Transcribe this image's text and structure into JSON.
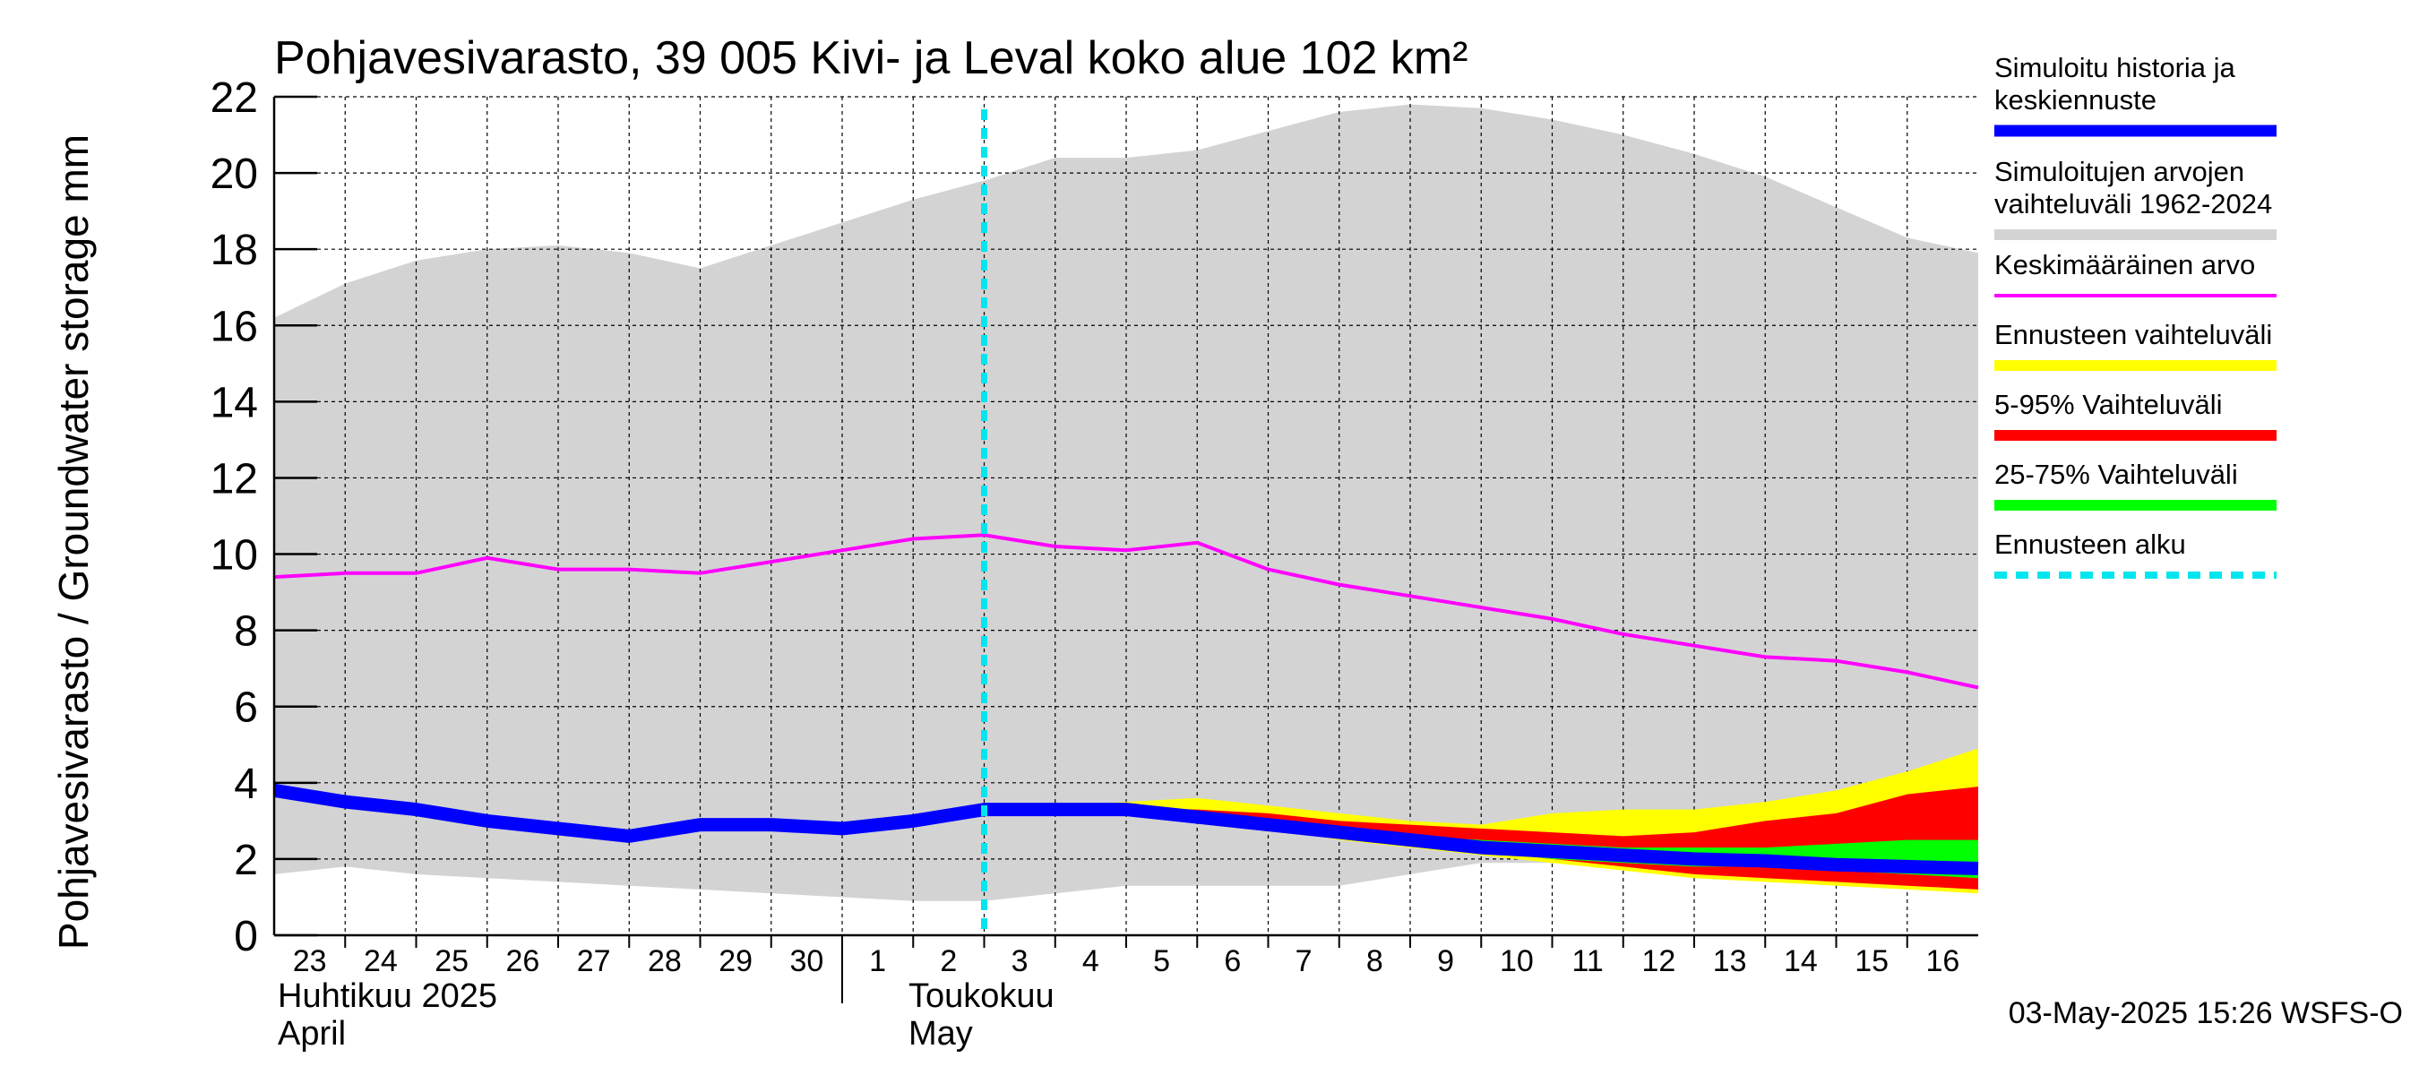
{
  "chart_data": {
    "type": "area",
    "title": "Pohjavesivarasto, 39 005 Kivi- ja Leval koko alue 102 km²",
    "ylabel": "Pohjavesivarasto / Groundwater storage   mm",
    "ylim": [
      0,
      22
    ],
    "yticks": [
      0,
      2,
      4,
      6,
      8,
      10,
      12,
      14,
      16,
      18,
      20,
      22
    ],
    "xlim": [
      0,
      24
    ],
    "xtick_labels": [
      "23",
      "24",
      "25",
      "26",
      "27",
      "28",
      "29",
      "30",
      "1",
      "2",
      "3",
      "4",
      "5",
      "6",
      "7",
      "8",
      "9",
      "10",
      "11",
      "12",
      "13",
      "14",
      "15",
      "16"
    ],
    "month_labels": [
      {
        "fi": "Huhtikuu  2025",
        "en": "April"
      },
      {
        "fi": "Toukokuu",
        "en": "May"
      }
    ],
    "month_boundary_x": 8,
    "forecast_start_x": 10,
    "footer": "03-May-2025 15:26 WSFS-O",
    "legend": [
      {
        "label": "Simuloitu historia ja\nkeskiennuste",
        "color": "#0000ff",
        "style": "thick"
      },
      {
        "label": "Simuloitujen arvojen\nvaihteluväli 1962-2024",
        "color": "#d3d3d3",
        "style": "band"
      },
      {
        "label": "Keskimääräinen arvo",
        "color": "#ff00ff",
        "style": "thin"
      },
      {
        "label": "Ennusteen vaihteluväli",
        "color": "#ffff00",
        "style": "band"
      },
      {
        "label": "5-95% Vaihteluväli",
        "color": "#ff0000",
        "style": "band"
      },
      {
        "label": "25-75% Vaihteluväli",
        "color": "#00ff00",
        "style": "band"
      },
      {
        "label": "Ennusteen alku",
        "color": "#00e5ee",
        "style": "dashed"
      }
    ],
    "series": {
      "hist_range": {
        "name": "Simuloitujen arvojen vaihteluväli 1962-2024",
        "x": [
          0,
          1,
          2,
          3,
          4,
          5,
          6,
          7,
          8,
          9,
          10,
          11,
          12,
          13,
          14,
          15,
          16,
          17,
          18,
          19,
          20,
          21,
          22,
          23,
          24
        ],
        "upper": [
          16.2,
          17.1,
          17.7,
          18.0,
          18.1,
          17.9,
          17.5,
          18.1,
          18.7,
          19.3,
          19.8,
          20.4,
          20.4,
          20.6,
          21.1,
          21.6,
          21.8,
          21.7,
          21.4,
          21.0,
          20.5,
          19.9,
          19.1,
          18.3,
          17.9
        ],
        "lower": [
          1.6,
          1.8,
          1.6,
          1.5,
          1.4,
          1.3,
          1.2,
          1.1,
          1.0,
          0.9,
          0.9,
          1.1,
          1.3,
          1.3,
          1.3,
          1.3,
          1.6,
          1.9,
          1.9,
          1.8,
          1.7,
          1.7,
          1.7,
          1.6,
          1.5
        ]
      },
      "mean": {
        "name": "Keskimääräinen arvo",
        "x": [
          0,
          1,
          2,
          3,
          4,
          5,
          6,
          7,
          8,
          9,
          10,
          11,
          12,
          13,
          14,
          15,
          16,
          17,
          18,
          19,
          20,
          21,
          22,
          23,
          24
        ],
        "values": [
          9.4,
          9.5,
          9.5,
          9.9,
          9.6,
          9.6,
          9.5,
          9.8,
          10.1,
          10.4,
          10.5,
          10.2,
          10.1,
          10.3,
          9.6,
          9.2,
          8.9,
          8.6,
          8.3,
          7.9,
          7.6,
          7.3,
          7.2,
          6.9,
          6.5
        ]
      },
      "forecast_range": {
        "name": "Ennusteen vaihteluväli",
        "x": [
          10,
          11,
          12,
          13,
          14,
          15,
          16,
          17,
          18,
          19,
          20,
          21,
          22,
          23,
          24
        ],
        "upper": [
          3.4,
          3.4,
          3.5,
          3.6,
          3.4,
          3.2,
          3.0,
          2.9,
          3.2,
          3.3,
          3.3,
          3.5,
          3.8,
          4.3,
          4.9
        ],
        "lower": [
          3.3,
          3.3,
          3.2,
          3.0,
          2.8,
          2.5,
          2.3,
          2.1,
          1.9,
          1.7,
          1.5,
          1.4,
          1.3,
          1.2,
          1.1
        ]
      },
      "p5_95": {
        "name": "5-95% Vaihteluväli",
        "x": [
          10,
          11,
          12,
          13,
          14,
          15,
          16,
          17,
          18,
          19,
          20,
          21,
          22,
          23,
          24
        ],
        "upper": [
          3.35,
          3.35,
          3.35,
          3.3,
          3.2,
          3.0,
          2.9,
          2.8,
          2.7,
          2.6,
          2.7,
          3.0,
          3.2,
          3.7,
          3.9
        ],
        "lower": [
          3.3,
          3.3,
          3.2,
          3.0,
          2.8,
          2.6,
          2.4,
          2.2,
          2.0,
          1.8,
          1.6,
          1.5,
          1.4,
          1.3,
          1.2
        ]
      },
      "p25_75": {
        "name": "25-75% Vaihteluväli",
        "x": [
          10,
          11,
          12,
          13,
          14,
          15,
          16,
          17,
          18,
          19,
          20,
          21,
          22,
          23,
          24
        ],
        "upper": [
          3.35,
          3.35,
          3.3,
          3.2,
          3.0,
          2.8,
          2.6,
          2.5,
          2.4,
          2.3,
          2.3,
          2.3,
          2.4,
          2.5,
          2.5
        ],
        "lower": [
          3.3,
          3.3,
          3.2,
          3.05,
          2.8,
          2.6,
          2.4,
          2.2,
          2.0,
          1.9,
          1.8,
          1.8,
          1.7,
          1.6,
          1.5
        ]
      },
      "median": {
        "name": "Simuloitu historia ja keskiennuste",
        "x": [
          0,
          1,
          2,
          3,
          4,
          5,
          6,
          7,
          8,
          9,
          10,
          11,
          12,
          13,
          14,
          15,
          16,
          17,
          18,
          19,
          20,
          21,
          22,
          23,
          24
        ],
        "values": [
          3.8,
          3.5,
          3.3,
          3.0,
          2.8,
          2.6,
          2.9,
          2.9,
          2.8,
          3.0,
          3.3,
          3.3,
          3.3,
          3.1,
          2.9,
          2.7,
          2.5,
          2.3,
          2.2,
          2.1,
          2.0,
          1.95,
          1.85,
          1.8,
          1.75
        ]
      }
    }
  }
}
